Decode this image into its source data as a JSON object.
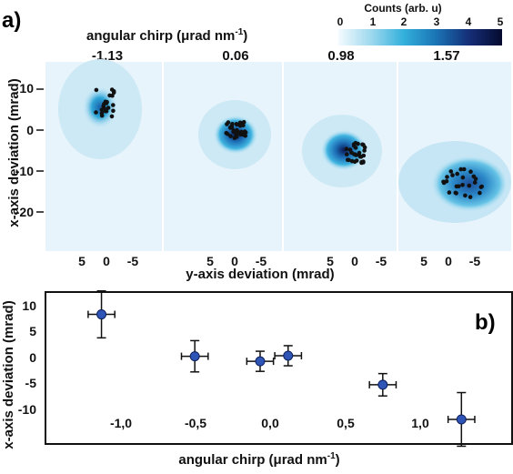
{
  "panel_a": {
    "label": "a)",
    "top_title": "angular chirp (μrad nm",
    "top_title_sup": "-1",
    "top_title_close": ")",
    "chirp_labels": [
      "-1.13",
      "0.06",
      "0.98",
      "1.57"
    ],
    "colorbar": {
      "title": "Counts (arb. u)",
      "ticks": [
        "0",
        "1",
        "2",
        "3",
        "4",
        "5"
      ],
      "stops": [
        "#f4fbff",
        "#9ed8ee",
        "#32b0dc",
        "#1a73b4",
        "#152e77",
        "#050a2e"
      ]
    },
    "ylabel": "x-axis deviation (mrad)",
    "xlabel": "y-axis deviation (mrad)",
    "y_ticks": [
      "10",
      "0",
      "-10",
      "-20"
    ],
    "x_ticks": [
      "5",
      "0",
      "-5"
    ]
  },
  "panel_b": {
    "label": "b)",
    "ylabel": "x-axis deviation (mrad)",
    "xlabel": "angular chirp (μrad nm",
    "xlabel_sup": "-1",
    "xlabel_close": ")",
    "y_ticks": [
      "10",
      "5",
      "0",
      "-5",
      "-10"
    ],
    "x_ticks": [
      "-1,0",
      "-0,5",
      "0,0",
      "0,5",
      "1,0"
    ]
  },
  "chart_data": [
    {
      "type": "scatter",
      "title": "angular chirp (μrad nm-1)",
      "xlabel": "y-axis deviation (mrad)",
      "ylabel": "x-axis deviation (mrad)",
      "panels": [
        {
          "chirp": "-1.13",
          "center": [
            0.5,
            6.5
          ],
          "spread": [
            2.5,
            3.5
          ]
        },
        {
          "chirp": "0.06",
          "center": [
            0,
            0
          ],
          "spread": [
            2.5,
            2
          ]
        },
        {
          "chirp": "0.98",
          "center": [
            0,
            -5.5
          ],
          "spread": [
            2.5,
            2.5
          ]
        },
        {
          "chirp": "1.57",
          "center": [
            -3.5,
            -13
          ],
          "spread": [
            5,
            3.5
          ]
        }
      ]
    },
    {
      "type": "scatter",
      "xlabel": "angular chirp (μrad nm-1)",
      "ylabel": "x-axis deviation (mrad)",
      "xlim": [
        -1.55,
        1.95
      ],
      "ylim": [
        -15.2,
        12
      ],
      "points": [
        {
          "x": -1.13,
          "y": 8.0,
          "xerr": 0.1,
          "yerr": 4.2
        },
        {
          "x": -0.43,
          "y": 0.5,
          "xerr": 0.1,
          "yerr": 2.8
        },
        {
          "x": 0.06,
          "y": -0.4,
          "xerr": 0.1,
          "yerr": 1.8
        },
        {
          "x": 0.27,
          "y": 0.6,
          "xerr": 0.1,
          "yerr": 1.8
        },
        {
          "x": 0.98,
          "y": -4.6,
          "xerr": 0.1,
          "yerr": 2.0
        },
        {
          "x": 1.57,
          "y": -10.8,
          "xerr": 0.1,
          "yerr": 4.8
        }
      ]
    }
  ]
}
